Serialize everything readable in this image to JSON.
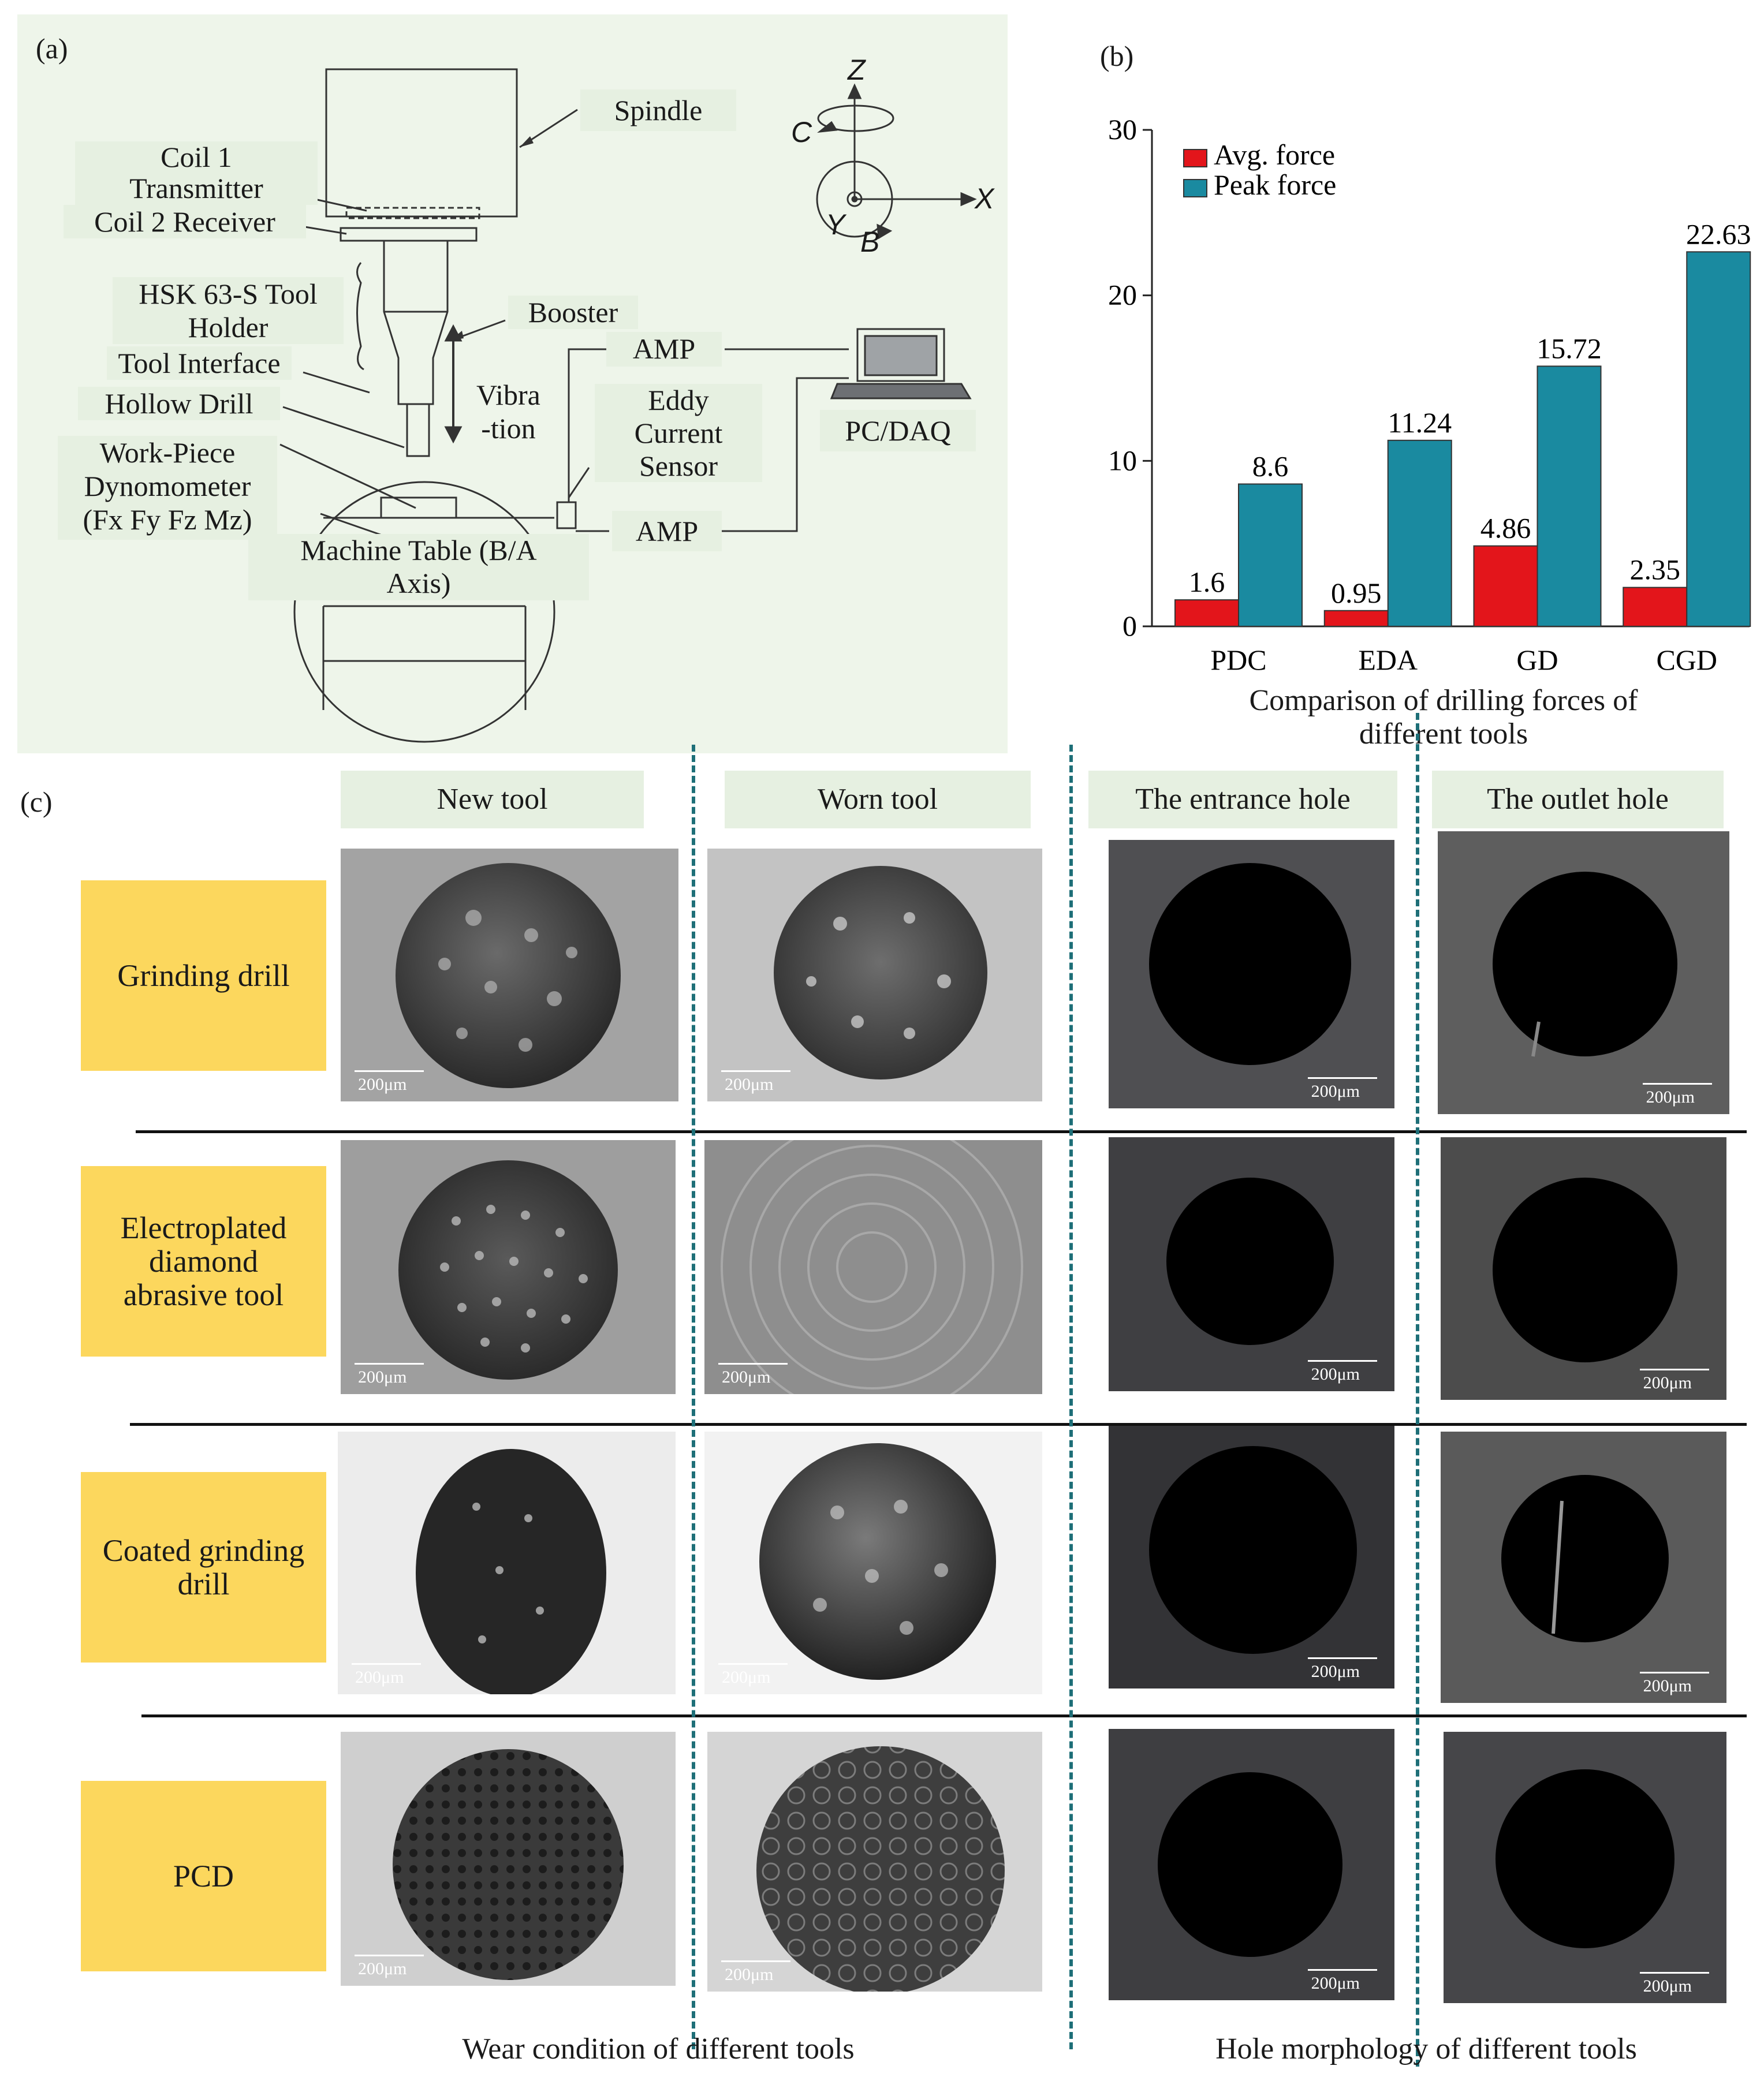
{
  "panels": {
    "a": "(a)",
    "b": "(b)",
    "c": "(c)"
  },
  "diagram": {
    "spindle": "Spindle",
    "coil1_line1": "Coil 1",
    "coil1_line2": "Transmitter",
    "coil2": "Coil 2 Receiver",
    "holder_line1": "HSK 63-S Tool",
    "holder_line2": "Holder",
    "tool_interface": "Tool Interface",
    "hollow_drill": "Hollow Drill",
    "booster": "Booster",
    "amp_top": "AMP",
    "amp_bottom": "AMP",
    "pc_daq": "PC/DAQ",
    "vibration_line1": "Vibra",
    "vibration_line2": "-tion",
    "eddy_line1": "Eddy",
    "eddy_line2": "Current",
    "eddy_line3": "Sensor",
    "workpiece_line1": "Work-Piece",
    "workpiece_line2": "Dynomometer",
    "workpiece_line3": "(Fx Fy Fz Mz)",
    "table_line1": "Machine Table (B/A",
    "table_line2": "Axis)",
    "axis_z": "Z",
    "axis_x": "X",
    "axis_y": "Y",
    "axis_c": "C",
    "axis_b": "B"
  },
  "chart_data": {
    "type": "bar",
    "categories": [
      "PDC",
      "EDA",
      "GD",
      "CGD"
    ],
    "series": [
      {
        "name": "Avg. force",
        "values": [
          1.6,
          0.95,
          4.86,
          2.35
        ],
        "labels": [
          "1.6",
          "0.95",
          "4.86",
          "2.35"
        ]
      },
      {
        "name": "Peak force",
        "values": [
          8.6,
          11.24,
          15.72,
          22.63
        ],
        "labels": [
          "8.6",
          "11.24",
          "15.72",
          "22.63"
        ]
      }
    ],
    "colors": [
      "#e3151b",
      "#1a8aa0"
    ],
    "title_line1": "Comparison of drilling forces of",
    "title_line2": "different tools",
    "ylim": [
      0,
      30
    ],
    "yticks": [
      0,
      10,
      20,
      30
    ],
    "ytick_labels": [
      "0",
      "10",
      "20",
      "30"
    ],
    "legend_position": "top-left"
  },
  "grid": {
    "headers": [
      "New tool",
      "Worn tool",
      "The entrance hole",
      "The outlet hole"
    ],
    "rows": [
      {
        "label_line1": "Grinding drill",
        "label_line2": "",
        "label_line3": ""
      },
      {
        "label_line1": "Electroplated",
        "label_line2": "diamond",
        "label_line3": "abrasive tool"
      },
      {
        "label_line1": "Coated grinding",
        "label_line2": "drill",
        "label_line3": ""
      },
      {
        "label_line1": "PCD",
        "label_line2": "",
        "label_line3": ""
      }
    ],
    "scale_label": "200μm",
    "caption_left": "Wear condition of different tools",
    "caption_right": "Hole morphology of different tools"
  }
}
